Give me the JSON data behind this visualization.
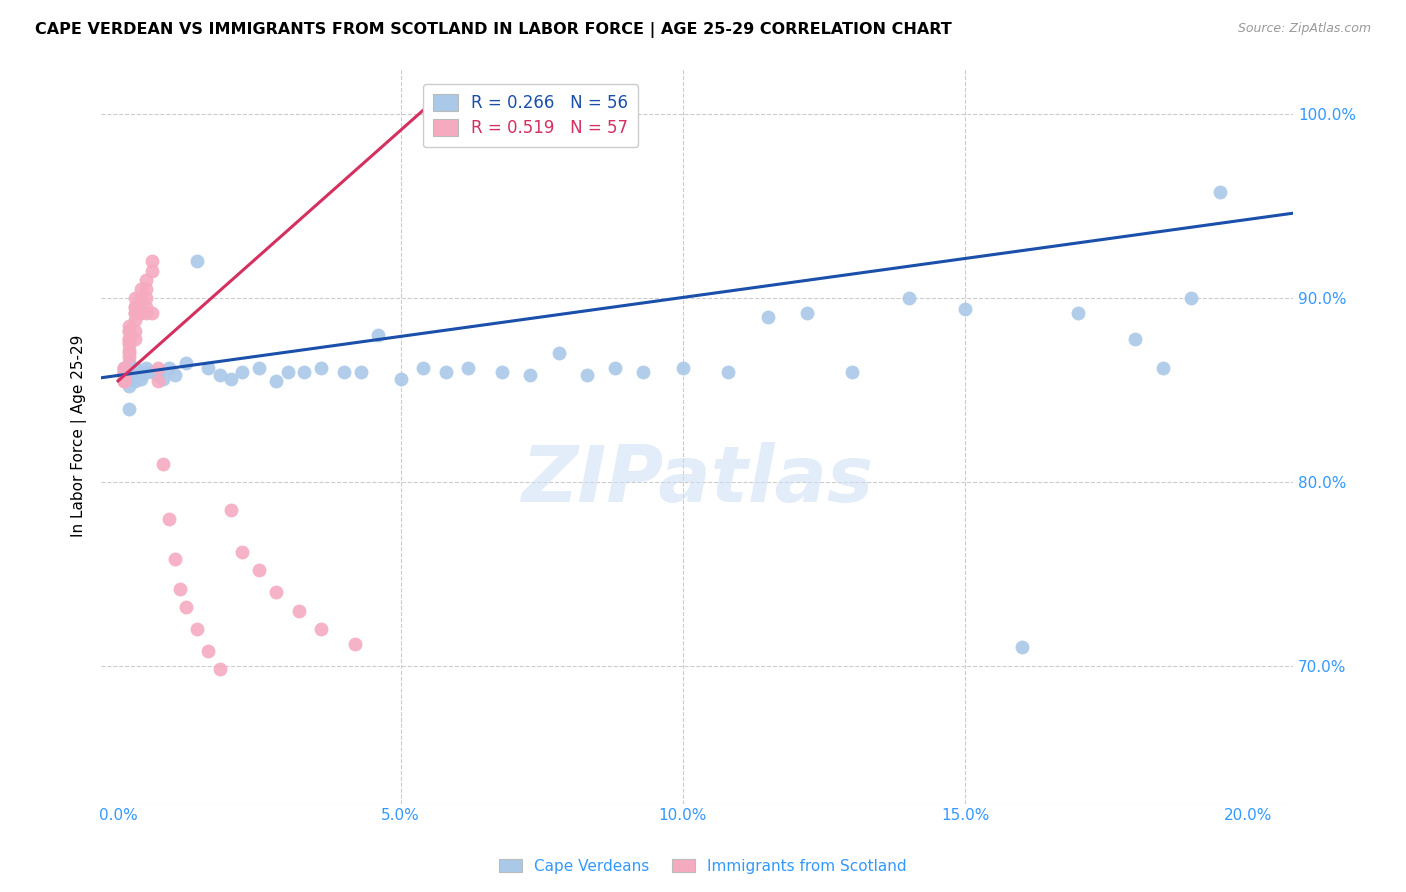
{
  "title": "CAPE VERDEAN VS IMMIGRANTS FROM SCOTLAND IN LABOR FORCE | AGE 25-29 CORRELATION CHART",
  "source": "Source: ZipAtlas.com",
  "ylabel": "In Labor Force | Age 25-29",
  "xlabel_ticks": [
    "0.0%",
    "5.0%",
    "10.0%",
    "15.0%",
    "20.0%"
  ],
  "xlabel_vals": [
    0.0,
    0.05,
    0.1,
    0.15,
    0.2
  ],
  "ylabel_ticks": [
    "70.0%",
    "80.0%",
    "90.0%",
    "100.0%"
  ],
  "ylabel_vals": [
    0.7,
    0.8,
    0.9,
    1.0
  ],
  "ylim": [
    0.625,
    1.025
  ],
  "xlim": [
    -0.003,
    0.208
  ],
  "blue_R": 0.266,
  "blue_N": 56,
  "pink_R": 0.519,
  "pink_N": 57,
  "blue_color": "#aac8e8",
  "pink_color": "#f5aac0",
  "blue_line_color": "#1a4faa",
  "pink_line_color": "#d43060",
  "legend_blue_label": "Cape Verdeans",
  "legend_pink_label": "Immigrants from Scotland",
  "watermark": "ZIPatlas",
  "blue_x": [
    0.001,
    0.001,
    0.001,
    0.002,
    0.002,
    0.002,
    0.002,
    0.003,
    0.003,
    0.003,
    0.004,
    0.004,
    0.005,
    0.005,
    0.006,
    0.007,
    0.008,
    0.009,
    0.01,
    0.012,
    0.014,
    0.016,
    0.018,
    0.02,
    0.022,
    0.025,
    0.028,
    0.03,
    0.033,
    0.036,
    0.04,
    0.043,
    0.046,
    0.05,
    0.054,
    0.058,
    0.062,
    0.068,
    0.073,
    0.078,
    0.083,
    0.088,
    0.093,
    0.1,
    0.108,
    0.115,
    0.122,
    0.13,
    0.14,
    0.15,
    0.16,
    0.17,
    0.18,
    0.185,
    0.19,
    0.195
  ],
  "blue_y": [
    0.86,
    0.856,
    0.862,
    0.858,
    0.852,
    0.84,
    0.865,
    0.862,
    0.858,
    0.855,
    0.858,
    0.856,
    0.86,
    0.862,
    0.86,
    0.858,
    0.856,
    0.862,
    0.858,
    0.865,
    0.92,
    0.862,
    0.858,
    0.856,
    0.86,
    0.862,
    0.855,
    0.86,
    0.86,
    0.862,
    0.86,
    0.86,
    0.88,
    0.856,
    0.862,
    0.86,
    0.862,
    0.86,
    0.858,
    0.87,
    0.858,
    0.862,
    0.86,
    0.862,
    0.86,
    0.89,
    0.892,
    0.86,
    0.9,
    0.894,
    0.71,
    0.892,
    0.878,
    0.862,
    0.9,
    0.958
  ],
  "pink_x": [
    0.001,
    0.001,
    0.001,
    0.001,
    0.001,
    0.001,
    0.001,
    0.001,
    0.001,
    0.001,
    0.002,
    0.002,
    0.002,
    0.002,
    0.002,
    0.002,
    0.002,
    0.002,
    0.002,
    0.002,
    0.003,
    0.003,
    0.003,
    0.003,
    0.003,
    0.003,
    0.003,
    0.003,
    0.004,
    0.004,
    0.004,
    0.004,
    0.005,
    0.005,
    0.005,
    0.005,
    0.005,
    0.006,
    0.006,
    0.006,
    0.007,
    0.007,
    0.008,
    0.009,
    0.01,
    0.011,
    0.012,
    0.014,
    0.016,
    0.018,
    0.02,
    0.022,
    0.025,
    0.028,
    0.032,
    0.036,
    0.042
  ],
  "pink_y": [
    0.86,
    0.862,
    0.858,
    0.856,
    0.855,
    0.858,
    0.862,
    0.86,
    0.858,
    0.855,
    0.885,
    0.878,
    0.882,
    0.876,
    0.87,
    0.872,
    0.868,
    0.875,
    0.882,
    0.878,
    0.895,
    0.888,
    0.892,
    0.882,
    0.878,
    0.892,
    0.9,
    0.895,
    0.9,
    0.905,
    0.892,
    0.898,
    0.895,
    0.9,
    0.905,
    0.892,
    0.91,
    0.892,
    0.92,
    0.915,
    0.855,
    0.862,
    0.81,
    0.78,
    0.758,
    0.742,
    0.732,
    0.72,
    0.708,
    0.698,
    0.785,
    0.762,
    0.752,
    0.74,
    0.73,
    0.72,
    0.712
  ]
}
